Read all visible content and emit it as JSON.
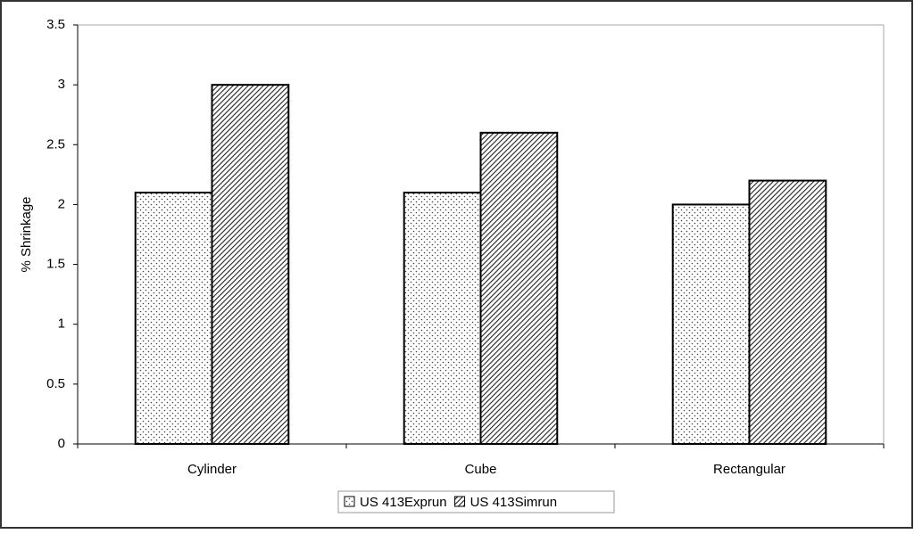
{
  "chart_data": {
    "type": "bar",
    "y_label": "% Shrinkage",
    "categories": [
      "Cylinder",
      "Cube",
      "Rectangular"
    ],
    "series": [
      {
        "name": "US 413Exprun",
        "pattern": "dots",
        "values": [
          2.1,
          2.1,
          2.0
        ]
      },
      {
        "name": "US 413Simrun",
        "pattern": "hatch",
        "values": [
          3.0,
          2.6,
          2.2
        ]
      }
    ],
    "ylim": [
      0,
      3.5
    ],
    "yticks": [
      0,
      0.5,
      1,
      1.5,
      2,
      2.5,
      3,
      3.5
    ],
    "grid": false,
    "legend": "bottom"
  }
}
